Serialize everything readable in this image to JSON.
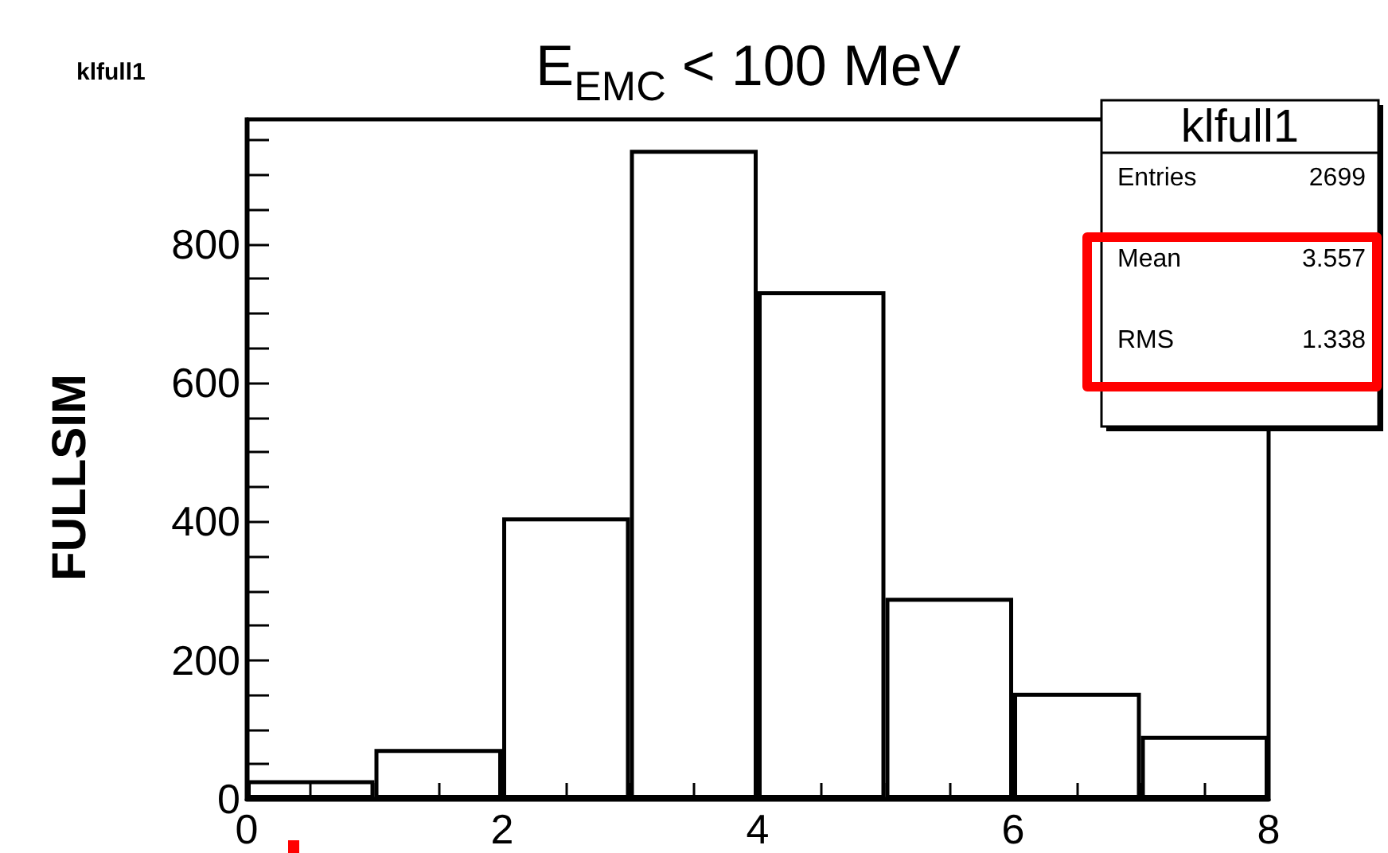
{
  "chart_data": {
    "type": "histogram",
    "title": "E$_{EMC}$ < 100 MeV",
    "ylabel": "FULLSIM",
    "bins": [
      0,
      1,
      2,
      3,
      4,
      5,
      6,
      7,
      8
    ],
    "values": [
      27,
      72,
      406,
      936,
      732,
      290,
      153,
      91
    ],
    "color": "#000000",
    "xlim": [
      0,
      8
    ],
    "xticks": [
      0,
      {
        "value": 0.5,
        "label": null
      },
      {
        "value": 1,
        "label": null
      },
      {
        "value": 1.5,
        "label": null
      },
      2,
      {
        "value": 2.5,
        "label": null
      },
      {
        "value": 3,
        "label": null
      },
      {
        "value": 3.5,
        "label": null
      },
      4,
      {
        "value": 4.5,
        "label": null
      },
      {
        "value": 5,
        "label": null
      },
      {
        "value": 5.5,
        "label": null
      },
      6,
      {
        "value": 6.5,
        "label": null
      },
      {
        "value": 7,
        "label": null
      },
      {
        "value": 7.5,
        "label": null
      },
      8
    ],
    "ylim": [
      0,
      980
    ],
    "yticks": [
      0,
      {
        "value": 50,
        "label": null
      },
      {
        "value": 100,
        "label": null
      },
      {
        "value": 150,
        "label": null
      },
      200,
      {
        "value": 250,
        "label": null
      },
      {
        "value": 300,
        "label": null
      },
      {
        "value": 350,
        "label": null
      },
      400,
      {
        "value": 450,
        "label": null
      },
      {
        "value": 500,
        "label": null
      },
      {
        "value": 550,
        "label": null
      },
      600,
      {
        "value": 650,
        "label": null
      },
      {
        "value": 700,
        "label": null
      },
      {
        "value": 750,
        "label": null
      },
      800,
      {
        "value": 850,
        "label": null
      },
      {
        "value": 900,
        "label": null
      },
      {
        "value": 950,
        "label": null
      }
    ],
    "grid": false,
    "annotations": [
      "klfull1",
      "klfull1",
      "Entries 2699",
      "Mean 3.557",
      "RMS 1.338"
    ]
  }
}
